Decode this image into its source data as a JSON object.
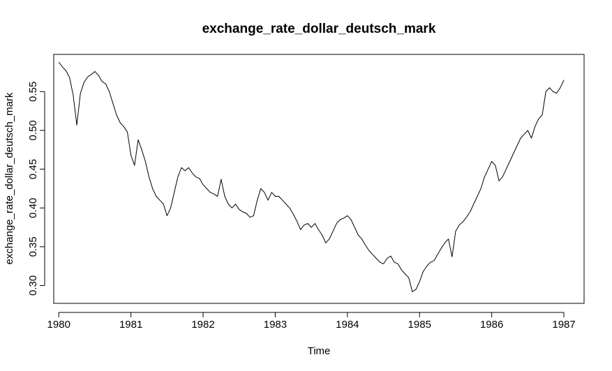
{
  "chart_data": {
    "type": "line",
    "title": "exchange_rate_dollar_deutsch_mark",
    "xlabel": "Time",
    "ylabel": "exchange_rate_dollar_deutsch_mark",
    "xlim": [
      1979.93,
      1987.28
    ],
    "ylim": [
      0.277,
      0.598
    ],
    "xticks": [
      1980,
      1981,
      1982,
      1983,
      1984,
      1985,
      1986,
      1987
    ],
    "xtick_labels": [
      "1980",
      "1981",
      "1982",
      "1983",
      "1984",
      "1985",
      "1986",
      "1987"
    ],
    "yticks": [
      0.3,
      0.35,
      0.4,
      0.45,
      0.5,
      0.55
    ],
    "ytick_labels": [
      "0.30",
      "0.35",
      "0.40",
      "0.45",
      "0.50",
      "0.55"
    ],
    "line_color": "#000000",
    "grid": false,
    "legend": "none",
    "series": [
      {
        "x": [
          1980.0,
          1980.05,
          1980.1,
          1980.15,
          1980.2,
          1980.25,
          1980.3,
          1980.35,
          1980.4,
          1980.45,
          1980.5,
          1980.55,
          1980.6,
          1980.65,
          1980.7,
          1980.75,
          1980.8,
          1980.85,
          1980.9,
          1980.95,
          1981.0,
          1981.05,
          1981.1,
          1981.15,
          1981.2,
          1981.25,
          1981.3,
          1981.35,
          1981.4,
          1981.45,
          1981.5,
          1981.55,
          1981.6,
          1981.65,
          1981.7,
          1981.75,
          1981.8,
          1981.85,
          1981.9,
          1981.95,
          1982.0,
          1982.05,
          1982.1,
          1982.15,
          1982.2,
          1982.25,
          1982.3,
          1982.35,
          1982.4,
          1982.45,
          1982.5,
          1982.55,
          1982.6,
          1982.65,
          1982.7,
          1982.75,
          1982.8,
          1982.85,
          1982.9,
          1982.95,
          1983.0,
          1983.05,
          1983.1,
          1983.15,
          1983.2,
          1983.25,
          1983.3,
          1983.35,
          1983.4,
          1983.45,
          1983.5,
          1983.55,
          1983.6,
          1983.65,
          1983.7,
          1983.75,
          1983.8,
          1983.85,
          1983.9,
          1983.95,
          1984.0,
          1984.05,
          1984.1,
          1984.15,
          1984.2,
          1984.25,
          1984.3,
          1984.35,
          1984.4,
          1984.45,
          1984.5,
          1984.55,
          1984.6,
          1984.65,
          1984.7,
          1984.75,
          1984.8,
          1984.85,
          1984.9,
          1984.95,
          1985.0,
          1985.05,
          1985.1,
          1985.15,
          1985.2,
          1985.25,
          1985.3,
          1985.35,
          1985.4,
          1985.45,
          1985.5,
          1985.55,
          1985.6,
          1985.65,
          1985.7,
          1985.75,
          1985.8,
          1985.85,
          1985.9,
          1985.95,
          1986.0,
          1986.05,
          1986.1,
          1986.15,
          1986.2,
          1986.25,
          1986.3,
          1986.35,
          1986.4,
          1986.45,
          1986.5,
          1986.55,
          1986.6,
          1986.65,
          1986.7,
          1986.75,
          1986.8,
          1986.85,
          1986.9,
          1986.95,
          1987.0
        ],
        "values": [
          0.588,
          0.582,
          0.577,
          0.568,
          0.545,
          0.507,
          0.548,
          0.562,
          0.569,
          0.572,
          0.576,
          0.571,
          0.563,
          0.56,
          0.55,
          0.535,
          0.52,
          0.51,
          0.505,
          0.498,
          0.468,
          0.455,
          0.488,
          0.475,
          0.46,
          0.44,
          0.425,
          0.415,
          0.41,
          0.405,
          0.39,
          0.4,
          0.42,
          0.44,
          0.452,
          0.448,
          0.452,
          0.445,
          0.44,
          0.438,
          0.43,
          0.425,
          0.42,
          0.418,
          0.415,
          0.437,
          0.415,
          0.405,
          0.4,
          0.405,
          0.398,
          0.395,
          0.393,
          0.388,
          0.39,
          0.41,
          0.425,
          0.42,
          0.41,
          0.42,
          0.415,
          0.415,
          0.41,
          0.405,
          0.4,
          0.392,
          0.383,
          0.372,
          0.378,
          0.38,
          0.375,
          0.38,
          0.372,
          0.365,
          0.355,
          0.36,
          0.37,
          0.38,
          0.385,
          0.387,
          0.39,
          0.385,
          0.375,
          0.365,
          0.36,
          0.352,
          0.345,
          0.34,
          0.335,
          0.33,
          0.328,
          0.335,
          0.338,
          0.33,
          0.328,
          0.32,
          0.315,
          0.31,
          0.292,
          0.295,
          0.305,
          0.318,
          0.325,
          0.33,
          0.332,
          0.34,
          0.348,
          0.355,
          0.36,
          0.337,
          0.37,
          0.378,
          0.382,
          0.388,
          0.395,
          0.405,
          0.415,
          0.425,
          0.44,
          0.45,
          0.46,
          0.455,
          0.435,
          0.44,
          0.45,
          0.46,
          0.47,
          0.48,
          0.49,
          0.495,
          0.5,
          0.49,
          0.505,
          0.515,
          0.52,
          0.55,
          0.555,
          0.55,
          0.548,
          0.555,
          0.565
        ]
      }
    ]
  }
}
